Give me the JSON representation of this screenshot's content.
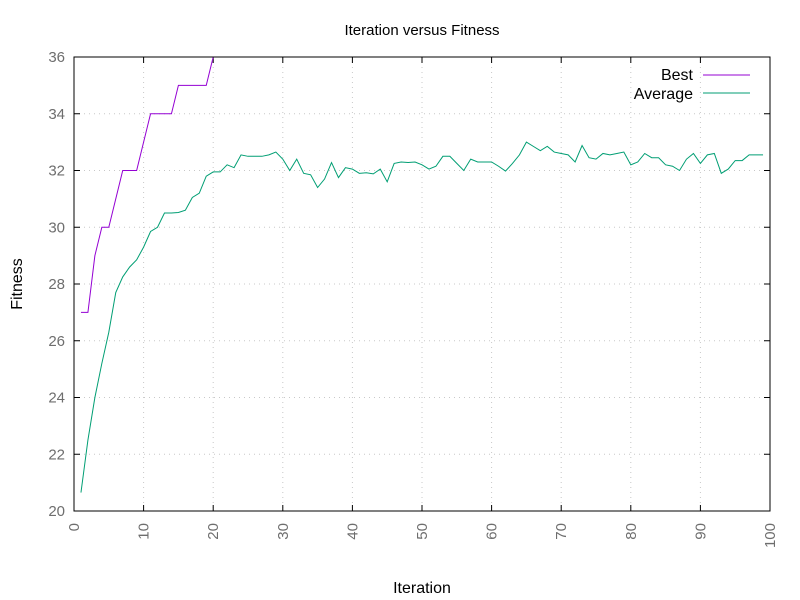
{
  "chart_data": {
    "type": "line",
    "title": "Iteration versus Fitness",
    "xlabel": "Iteration",
    "ylabel": "Fitness",
    "xlim": [
      0,
      100
    ],
    "ylim": [
      20,
      36
    ],
    "xticks": [
      0,
      10,
      20,
      30,
      40,
      50,
      60,
      70,
      80,
      90,
      100
    ],
    "yticks": [
      20,
      22,
      24,
      26,
      28,
      30,
      32,
      34,
      36
    ],
    "grid": true,
    "legend_position": "top-right",
    "x": [
      1,
      2,
      3,
      4,
      5,
      6,
      7,
      8,
      9,
      10,
      11,
      12,
      13,
      14,
      15,
      16,
      17,
      18,
      19,
      20,
      21,
      22,
      23,
      24,
      25,
      26,
      27,
      28,
      29,
      30,
      31,
      32,
      33,
      34,
      35,
      36,
      37,
      38,
      39,
      40,
      41,
      42,
      43,
      44,
      45,
      46,
      47,
      48,
      49,
      50,
      51,
      52,
      53,
      54,
      55,
      56,
      57,
      58,
      59,
      60,
      61,
      62,
      63,
      64,
      65,
      66,
      67,
      68,
      69,
      70,
      71,
      72,
      73,
      74,
      75,
      76,
      77,
      78,
      79,
      80,
      81,
      82,
      83,
      84,
      85,
      86,
      87,
      88,
      89,
      90,
      91,
      92,
      93,
      94,
      95,
      96,
      97,
      98,
      99
    ],
    "series": [
      {
        "name": "Best",
        "color": "#9400d3",
        "values": [
          27,
          27,
          29,
          30,
          30,
          31,
          32,
          32,
          32,
          33,
          34,
          34,
          34,
          34,
          35,
          35,
          35,
          35,
          35,
          36,
          36,
          36,
          36,
          36,
          36,
          36,
          36,
          36,
          36,
          36,
          36,
          36,
          36,
          36,
          36,
          36,
          36,
          36,
          36,
          36,
          36,
          36,
          36,
          36,
          36,
          36,
          36,
          36,
          36,
          36,
          36,
          36,
          36,
          36,
          36,
          36,
          36,
          36,
          36,
          36,
          36,
          36,
          36,
          36,
          36,
          36,
          36,
          36,
          36,
          36,
          36,
          36,
          36,
          36,
          36,
          36,
          36,
          36,
          36,
          36,
          36,
          36,
          36,
          36,
          36,
          36,
          36,
          36,
          36,
          36,
          36,
          36,
          36,
          36,
          36,
          36,
          36,
          36,
          36
        ]
      },
      {
        "name": "Average",
        "color": "#009e73",
        "values": [
          20.65,
          22.5,
          24,
          25.2,
          26.3,
          27.7,
          28.25,
          28.6,
          28.85,
          29.3,
          29.85,
          30.0,
          30.5,
          30.5,
          30.52,
          30.6,
          31.05,
          31.2,
          31.8,
          31.95,
          31.95,
          32.2,
          32.1,
          32.55,
          32.5,
          32.5,
          32.5,
          32.55,
          32.65,
          32.4,
          32.0,
          32.4,
          31.9,
          31.85,
          31.4,
          31.7,
          32.28,
          31.75,
          32.1,
          32.05,
          31.9,
          31.92,
          31.88,
          32.05,
          31.6,
          32.25,
          32.3,
          32.28,
          32.3,
          32.2,
          32.05,
          32.15,
          32.5,
          32.5,
          32.25,
          32.0,
          32.4,
          32.3,
          32.3,
          32.3,
          32.15,
          31.98,
          32.25,
          32.55,
          33.0,
          32.85,
          32.7,
          32.85,
          32.65,
          32.6,
          32.55,
          32.3,
          32.88,
          32.45,
          32.4,
          32.6,
          32.55,
          32.6,
          32.65,
          32.2,
          32.3,
          32.6,
          32.45,
          32.45,
          32.2,
          32.15,
          32.0,
          32.4,
          32.6,
          32.25,
          32.55,
          32.6,
          31.9,
          32.05,
          32.35,
          32.35,
          32.55,
          32.55,
          32.55
        ]
      }
    ]
  }
}
